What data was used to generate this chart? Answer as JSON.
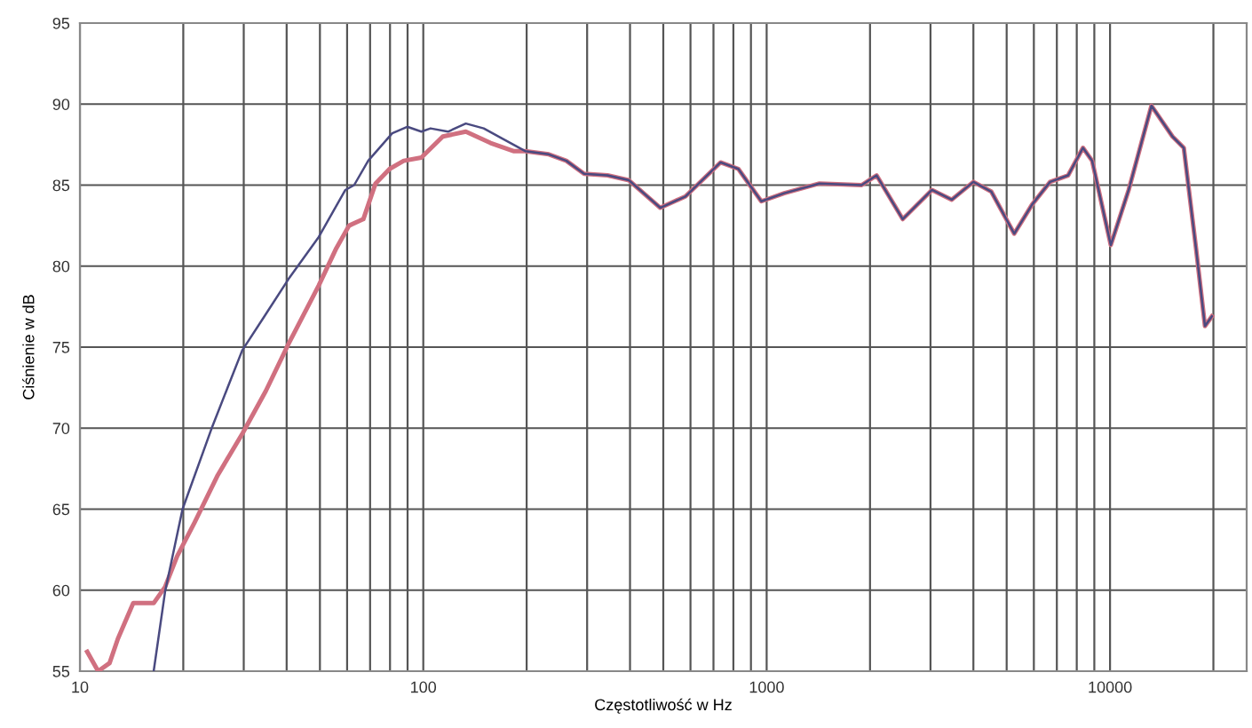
{
  "chart_data": {
    "type": "line",
    "xlabel": "Częstotliwość w Hz",
    "ylabel": "Ciśnienie w dB",
    "log": "x",
    "grid": true,
    "legend": false,
    "marker": "none",
    "line_style": "solid",
    "xlim": [
      10,
      25000
    ],
    "ylim": [
      55,
      95
    ],
    "xticks": [
      10,
      {
        "value": 20,
        "label": null
      },
      {
        "value": 30,
        "label": null
      },
      {
        "value": 40,
        "label": null
      },
      {
        "value": 50,
        "label": null
      },
      {
        "value": 60,
        "label": null
      },
      {
        "value": 70,
        "label": null
      },
      {
        "value": 80,
        "label": null
      },
      {
        "value": 90,
        "label": null
      },
      100,
      {
        "value": 200,
        "label": null
      },
      {
        "value": 300,
        "label": null
      },
      {
        "value": 400,
        "label": null
      },
      {
        "value": 500,
        "label": null
      },
      {
        "value": 600,
        "label": null
      },
      {
        "value": 700,
        "label": null
      },
      {
        "value": 800,
        "label": null
      },
      {
        "value": 900,
        "label": null
      },
      1000,
      {
        "value": 2000,
        "label": null
      },
      {
        "value": 3000,
        "label": null
      },
      {
        "value": 4000,
        "label": null
      },
      {
        "value": 5000,
        "label": null
      },
      {
        "value": 6000,
        "label": null
      },
      {
        "value": 7000,
        "label": null
      },
      {
        "value": 8000,
        "label": null
      },
      {
        "value": 9000,
        "label": null
      },
      10000,
      {
        "value": 20000,
        "label": null
      }
    ],
    "yticks": [
      55,
      60,
      65,
      70,
      75,
      80,
      85,
      90,
      95
    ],
    "series": [
      {
        "color": "#d07080",
        "x": [
          10.5,
          11.3,
          12.2,
          12.9,
          14.3,
          16.4,
          17.7,
          19.2,
          21.6,
          25.2,
          29.8,
          34.8,
          40.5,
          49.6,
          55.8,
          60.8,
          66.9,
          72.6,
          79.8,
          87.7,
          98.7,
          114,
          133,
          157,
          183,
          198,
          232,
          261,
          294,
          344,
          397,
          490,
          580,
          734,
          827,
          965,
          1125,
          1425,
          1890,
          2090,
          2490,
          3030,
          3460,
          4000,
          4510,
          5260,
          5930,
          6690,
          7550,
          8340,
          8870,
          10050,
          11330,
          13200,
          15200,
          16400,
          17800,
          18900,
          19800
        ],
        "values": [
          56.2,
          55,
          55.5,
          57,
          59.2,
          59.2,
          60.2,
          62.1,
          64.2,
          67.1,
          69.7,
          72.3,
          75.2,
          78.8,
          81.1,
          82.5,
          82.9,
          85.1,
          86,
          86.5,
          86.7,
          88,
          88.3,
          87.6,
          87.1,
          87.1,
          86.9,
          86.5,
          85.7,
          85.6,
          85.3,
          83.6,
          84.3,
          86.4,
          86,
          84,
          84.5,
          85.1,
          85,
          85.6,
          82.9,
          84.7,
          84.1,
          85.2,
          84.6,
          82,
          83.8,
          85.2,
          85.6,
          87.3,
          86.5,
          81.3,
          84.7,
          89.9,
          88,
          87.3,
          81.1,
          76.3,
          76.9
        ]
      },
      {
        "color": "#4a4a80",
        "x": [
          16.4,
          17.7,
          19.9,
          24.3,
          29.7,
          34.7,
          40.5,
          49.6,
          59.3,
          62.9,
          69.1,
          81.2,
          89.8,
          98.7,
          105,
          118,
          133,
          150,
          169,
          198,
          232,
          261,
          294,
          344,
          397,
          490,
          580,
          734,
          827,
          965,
          1125,
          1425,
          1890,
          2090,
          2490,
          3030,
          3460,
          4000,
          4510,
          5260,
          5930,
          6690,
          7550,
          8340,
          8870,
          10050,
          11330,
          13200,
          15200,
          16400,
          17800,
          18900,
          19800
        ],
        "values": [
          55,
          59.9,
          65,
          70.1,
          74.8,
          77,
          79.2,
          81.8,
          84.7,
          85,
          86.5,
          88.2,
          88.6,
          88.3,
          88.5,
          88.3,
          88.8,
          88.5,
          87.9,
          87.1,
          86.9,
          86.5,
          85.7,
          85.6,
          85.3,
          83.6,
          84.3,
          86.4,
          86,
          84,
          84.5,
          85.1,
          85,
          85.6,
          82.9,
          84.7,
          84.1,
          85.2,
          84.6,
          82,
          83.8,
          85.2,
          85.6,
          87.3,
          86.5,
          81.3,
          84.7,
          89.9,
          88,
          87.3,
          81.1,
          76.3,
          76.9
        ]
      }
    ]
  }
}
